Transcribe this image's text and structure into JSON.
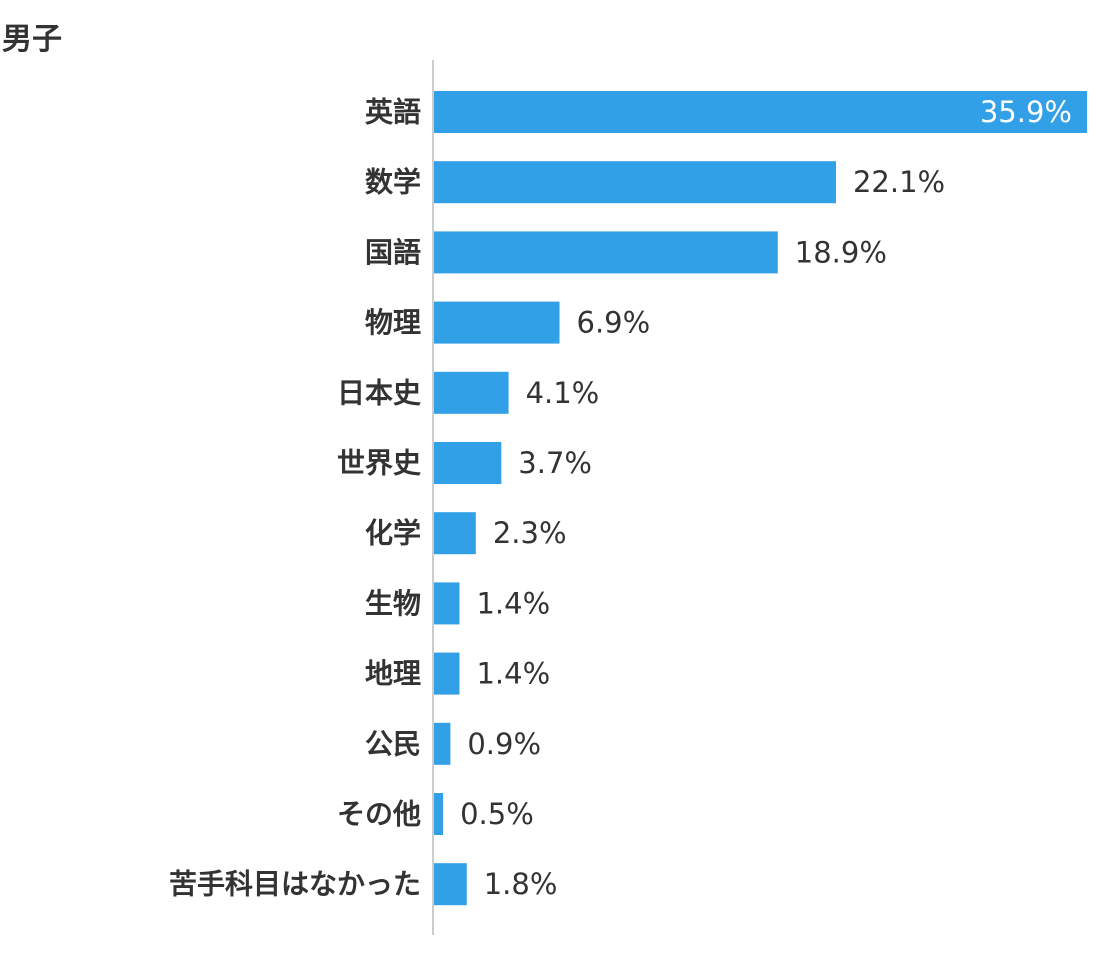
{
  "chart_data": {
    "type": "bar",
    "orientation": "horizontal",
    "title": "男子",
    "categories": [
      "英語",
      "数学",
      "国語",
      "物理",
      "日本史",
      "世界史",
      "化学",
      "生物",
      "地理",
      "公民",
      "その他",
      "苦手科目はなかった"
    ],
    "values": [
      35.9,
      22.1,
      18.9,
      6.9,
      4.1,
      3.7,
      2.3,
      1.4,
      1.4,
      0.9,
      0.5,
      1.8
    ],
    "value_labels": [
      "35.9%",
      "22.1%",
      "18.9%",
      "6.9%",
      "4.1%",
      "3.7%",
      "2.3%",
      "1.4%",
      "1.4%",
      "0.9%",
      "0.5%",
      "1.8%"
    ],
    "xlim": [
      0,
      35.9
    ],
    "grid": false,
    "bar_color": "#31a0e6",
    "axis_color": "#cccccc"
  }
}
